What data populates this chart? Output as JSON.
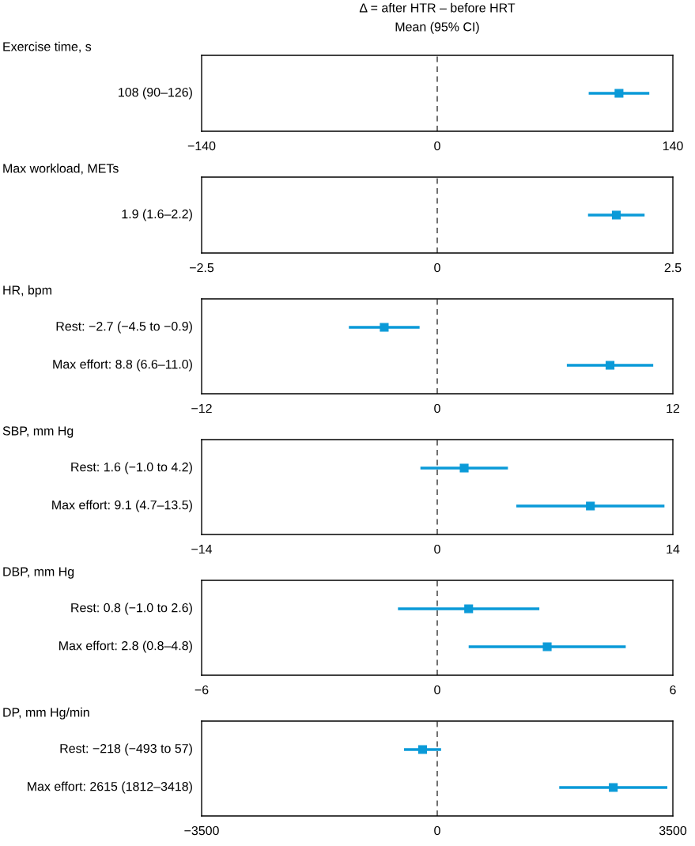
{
  "chart_data": [
    {
      "type": "scatter",
      "orientation": "horizontal",
      "title": "Exercise time, s",
      "annotations": [
        "Δ = after HTR – before HRT",
        "Mean (95% CI)"
      ],
      "categories": [
        "108 (90–126)"
      ],
      "series": [
        {
          "color": "#0a9ad8",
          "values": [
            108
          ],
          "errors": [
            18
          ]
        }
      ],
      "xlim": [
        -140,
        140
      ],
      "xticks": [
        {
          "value": -140,
          "label": "−140"
        },
        0,
        140
      ],
      "marker": "square",
      "ref_lines": [
        {
          "axis": "x",
          "value": 0,
          "line_style": "dashed",
          "color": "#333333"
        }
      ]
    },
    {
      "type": "scatter",
      "orientation": "horizontal",
      "title": "Max workload, METs",
      "categories": [
        "1.9 (1.6–2.2)"
      ],
      "series": [
        {
          "color": "#0a9ad8",
          "values": [
            1.9
          ],
          "errors": [
            0.3
          ]
        }
      ],
      "xlim": [
        -2.5,
        2.5
      ],
      "xticks": [
        {
          "value": -2.5,
          "label": "−2.5"
        },
        0,
        2.5
      ],
      "marker": "square",
      "ref_lines": [
        {
          "axis": "x",
          "value": 0,
          "line_style": "dashed",
          "color": "#333333"
        }
      ]
    },
    {
      "type": "scatter",
      "orientation": "horizontal",
      "title": "HR, bpm",
      "categories": [
        "Rest: −2.7 (−4.5 to −0.9)",
        "Max effort: 8.8 (6.6–11.0)"
      ],
      "series": [
        {
          "color": "#0a9ad8",
          "values": [
            -2.7,
            8.8
          ],
          "errors": [
            1.8,
            2.2
          ]
        }
      ],
      "xlim": [
        -12,
        12
      ],
      "xticks": [
        {
          "value": -12,
          "label": "−12"
        },
        0,
        12
      ],
      "marker": "square",
      "ref_lines": [
        {
          "axis": "x",
          "value": 0,
          "line_style": "dashed",
          "color": "#333333"
        }
      ]
    },
    {
      "type": "scatter",
      "orientation": "horizontal",
      "title": "SBP, mm Hg",
      "categories": [
        "Rest: 1.6 (−1.0 to 4.2)",
        "Max effort: 9.1 (4.7–13.5)"
      ],
      "series": [
        {
          "color": "#0a9ad8",
          "values": [
            1.6,
            9.1
          ],
          "errors": [
            2.6,
            4.4
          ]
        }
      ],
      "xlim": [
        -14,
        14
      ],
      "xticks": [
        {
          "value": -14,
          "label": "−14"
        },
        0,
        14
      ],
      "marker": "square",
      "ref_lines": [
        {
          "axis": "x",
          "value": 0,
          "line_style": "dashed",
          "color": "#333333"
        }
      ]
    },
    {
      "type": "scatter",
      "orientation": "horizontal",
      "title": "DBP, mm Hg",
      "categories": [
        "Rest: 0.8 (−1.0 to 2.6)",
        "Max effort: 2.8 (0.8–4.8)"
      ],
      "series": [
        {
          "color": "#0a9ad8",
          "values": [
            0.8,
            2.8
          ],
          "errors": [
            1.8,
            2.0
          ]
        }
      ],
      "xlim": [
        -6,
        6
      ],
      "xticks": [
        {
          "value": -6,
          "label": "−6"
        },
        0,
        6
      ],
      "marker": "square",
      "ref_lines": [
        {
          "axis": "x",
          "value": 0,
          "line_style": "dashed",
          "color": "#333333"
        }
      ]
    },
    {
      "type": "scatter",
      "orientation": "horizontal",
      "title": "DP, mm Hg/min",
      "categories": [
        "Rest: −218 (−493 to 57)",
        "Max effort: 2615 (1812–3418)"
      ],
      "series": [
        {
          "color": "#0a9ad8",
          "values": [
            -218,
            2615
          ],
          "errors": [
            275,
            803
          ]
        }
      ],
      "xlim": [
        -3500,
        3500
      ],
      "xticks": [
        {
          "value": -3500,
          "label": "−3500"
        },
        0,
        3500
      ],
      "marker": "square",
      "ref_lines": [
        {
          "axis": "x",
          "value": 0,
          "line_style": "dashed",
          "color": "#333333"
        }
      ]
    }
  ]
}
